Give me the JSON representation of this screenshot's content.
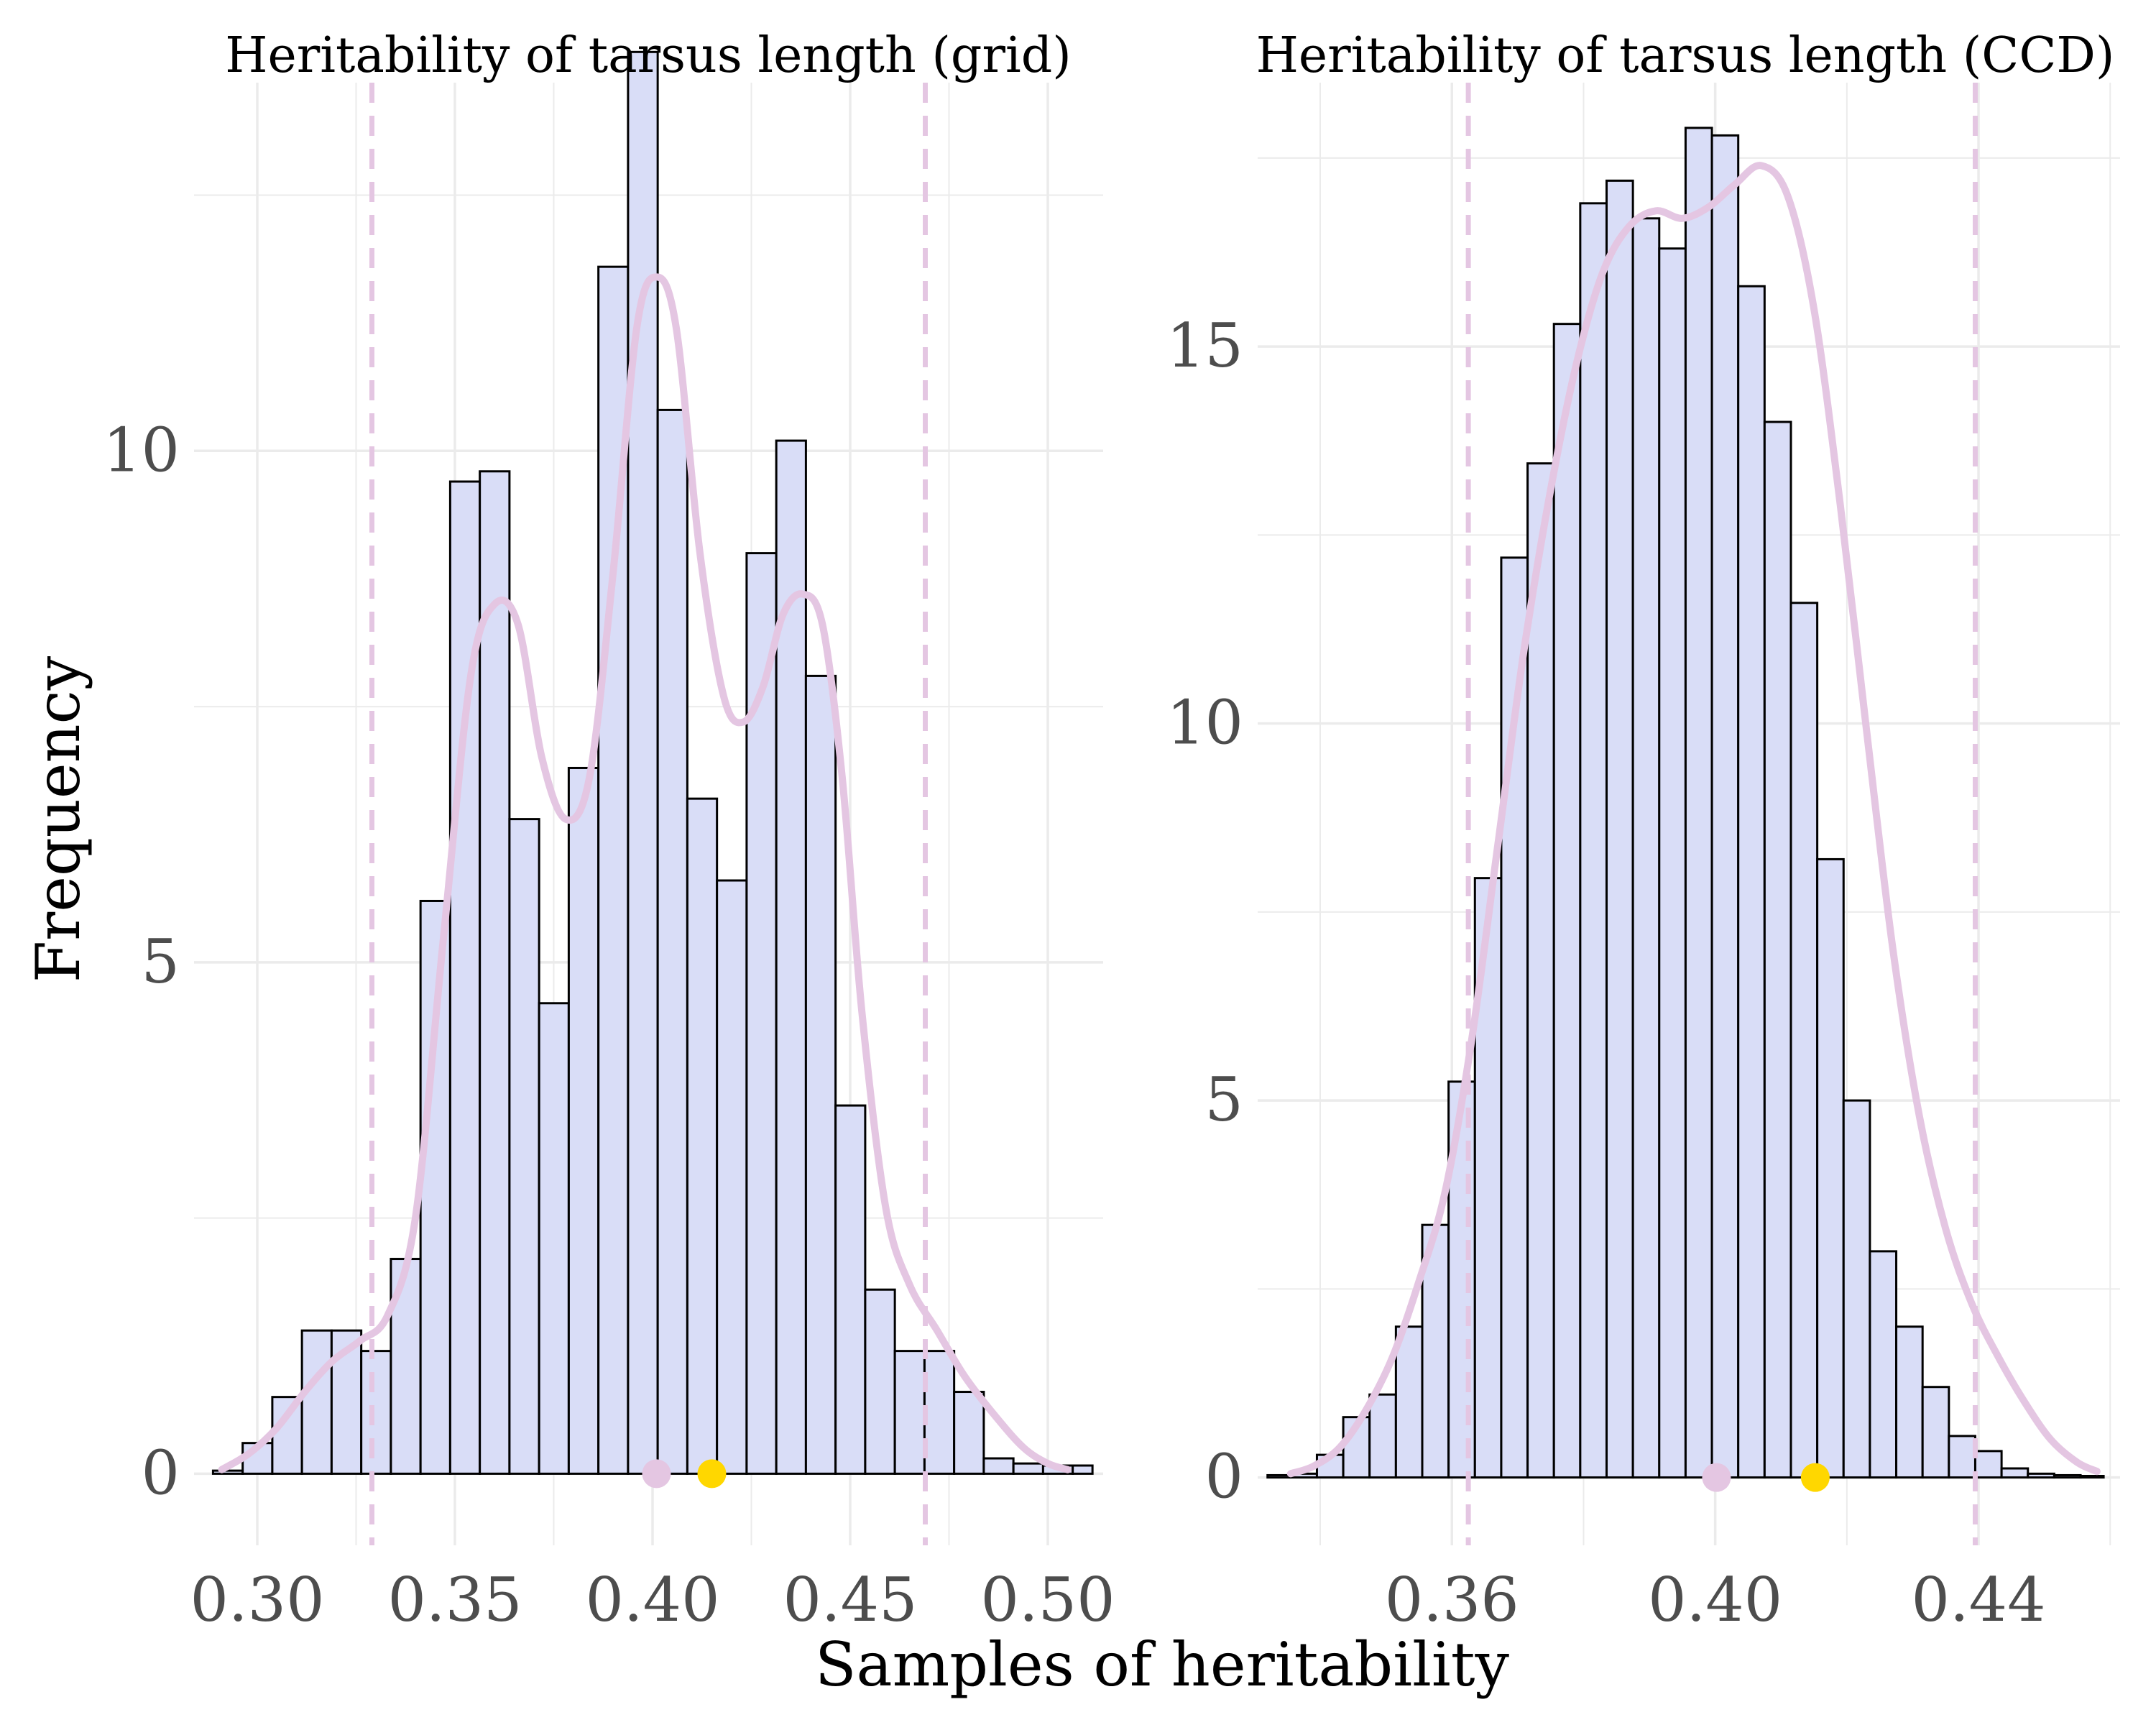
{
  "figure": {
    "xlabel": "Samples of heritability",
    "ylabel": "Frequency",
    "colors": {
      "bar_fill": "#d9ddf7",
      "bar_stroke": "#000000",
      "density_line": "#e4c6e2",
      "ci_line": "#e4c6e2",
      "point_mean": "#e4c6e2",
      "point_mode": "#ffd700",
      "grid": "#ebebeb",
      "tick_text": "#4d4d4d"
    }
  },
  "chart_data": [
    {
      "type": "bar",
      "subtype": "histogram_with_density",
      "title": "Heritability of tarsus length (grid)",
      "xlim": [
        0.284,
        0.514
      ],
      "ylim": [
        -0.7,
        13.6
      ],
      "xticks": [
        0.3,
        0.35,
        0.4,
        0.45,
        0.5
      ],
      "xtick_labels": [
        "0.30",
        "0.35",
        "0.40",
        "0.45",
        "0.50"
      ],
      "yticks": [
        0,
        5,
        10
      ],
      "ytick_labels": [
        "0",
        "5",
        "10"
      ],
      "bin_edges": [
        0.2888,
        0.2963,
        0.3038,
        0.3113,
        0.3188,
        0.3263,
        0.3338,
        0.3413,
        0.3488,
        0.3563,
        0.3638,
        0.3713,
        0.3788,
        0.3863,
        0.3938,
        0.4013,
        0.4088,
        0.4163,
        0.4238,
        0.4313,
        0.4388,
        0.4463,
        0.4538,
        0.4613,
        0.4688,
        0.4763,
        0.4838,
        0.4913,
        0.4988,
        0.5063,
        0.5113
      ],
      "counts": [
        0.03,
        0.3,
        0.75,
        1.4,
        1.4,
        1.2,
        2.1,
        5.6,
        9.7,
        9.8,
        6.4,
        4.6,
        6.9,
        11.8,
        13.9,
        10.4,
        6.6,
        5.8,
        9.0,
        10.1,
        7.8,
        3.6,
        1.8,
        1.2,
        1.2,
        0.8,
        0.15,
        0.1,
        0.08,
        0.08
      ],
      "density": [
        [
          0.291,
          0.04
        ],
        [
          0.298,
          0.2
        ],
        [
          0.305,
          0.45
        ],
        [
          0.312,
          0.8
        ],
        [
          0.319,
          1.1
        ],
        [
          0.326,
          1.3
        ],
        [
          0.333,
          1.55
        ],
        [
          0.34,
          2.5
        ],
        [
          0.347,
          5.2
        ],
        [
          0.354,
          7.8
        ],
        [
          0.36,
          8.5
        ],
        [
          0.366,
          8.3
        ],
        [
          0.372,
          7.0
        ],
        [
          0.378,
          6.4
        ],
        [
          0.384,
          6.8
        ],
        [
          0.39,
          8.8
        ],
        [
          0.396,
          11.2
        ],
        [
          0.401,
          11.7
        ],
        [
          0.406,
          11.2
        ],
        [
          0.412,
          9.0
        ],
        [
          0.418,
          7.6
        ],
        [
          0.423,
          7.35
        ],
        [
          0.428,
          7.7
        ],
        [
          0.433,
          8.4
        ],
        [
          0.438,
          8.6
        ],
        [
          0.443,
          8.3
        ],
        [
          0.448,
          6.8
        ],
        [
          0.453,
          4.5
        ],
        [
          0.459,
          2.6
        ],
        [
          0.465,
          1.85
        ],
        [
          0.472,
          1.4
        ],
        [
          0.479,
          0.95
        ],
        [
          0.487,
          0.55
        ],
        [
          0.494,
          0.25
        ],
        [
          0.5,
          0.1
        ],
        [
          0.505,
          0.04
        ]
      ],
      "ci_lines": [
        0.329,
        0.469
      ],
      "mean_point": 0.401,
      "mode_point": 0.415
    },
    {
      "type": "bar",
      "subtype": "histogram_with_density",
      "title": "Heritability of tarsus length (CCD)",
      "xlim": [
        0.3305,
        0.4615
      ],
      "ylim": [
        -0.9,
        18.5
      ],
      "xticks": [
        0.36,
        0.4,
        0.44
      ],
      "xtick_labels": [
        "0.36",
        "0.40",
        "0.44"
      ],
      "yticks": [
        0,
        5,
        10,
        15
      ],
      "ytick_labels": [
        "0",
        "5",
        "10",
        "15"
      ],
      "bin_edges": [
        0.332,
        0.3355,
        0.3395,
        0.3435,
        0.3475,
        0.3515,
        0.3555,
        0.3595,
        0.3635,
        0.3675,
        0.3715,
        0.3755,
        0.3795,
        0.3835,
        0.3875,
        0.3915,
        0.3955,
        0.3995,
        0.4035,
        0.4075,
        0.4115,
        0.4155,
        0.4195,
        0.4235,
        0.4275,
        0.4315,
        0.4355,
        0.4395,
        0.4435,
        0.4475,
        0.4515,
        0.4555,
        0.459
      ],
      "counts": [
        0.03,
        0.05,
        0.3,
        0.8,
        1.1,
        2.0,
        3.35,
        5.25,
        7.95,
        12.2,
        13.45,
        15.3,
        16.9,
        17.2,
        16.7,
        16.3,
        17.9,
        17.8,
        15.8,
        14.0,
        11.6,
        8.2,
        5.0,
        3.0,
        2.0,
        1.2,
        0.55,
        0.35,
        0.12,
        0.05,
        0.03,
        0.02
      ],
      "density": [
        [
          0.3355,
          0.05
        ],
        [
          0.339,
          0.15
        ],
        [
          0.343,
          0.4
        ],
        [
          0.347,
          0.9
        ],
        [
          0.351,
          1.6
        ],
        [
          0.355,
          2.6
        ],
        [
          0.359,
          3.8
        ],
        [
          0.363,
          5.8
        ],
        [
          0.367,
          8.4
        ],
        [
          0.371,
          11.0
        ],
        [
          0.375,
          13.1
        ],
        [
          0.379,
          14.8
        ],
        [
          0.383,
          16.0
        ],
        [
          0.387,
          16.6
        ],
        [
          0.391,
          16.8
        ],
        [
          0.395,
          16.7
        ],
        [
          0.399,
          16.85
        ],
        [
          0.403,
          17.15
        ],
        [
          0.407,
          17.4
        ],
        [
          0.411,
          17.0
        ],
        [
          0.415,
          15.5
        ],
        [
          0.419,
          12.9
        ],
        [
          0.423,
          9.9
        ],
        [
          0.427,
          7.0
        ],
        [
          0.431,
          4.8
        ],
        [
          0.435,
          3.3
        ],
        [
          0.439,
          2.3
        ],
        [
          0.443,
          1.6
        ],
        [
          0.447,
          1.0
        ],
        [
          0.451,
          0.5
        ],
        [
          0.455,
          0.2
        ],
        [
          0.458,
          0.08
        ]
      ],
      "ci_lines": [
        0.3625,
        0.4395
      ],
      "mean_point": 0.4002,
      "mode_point": 0.4152
    }
  ]
}
